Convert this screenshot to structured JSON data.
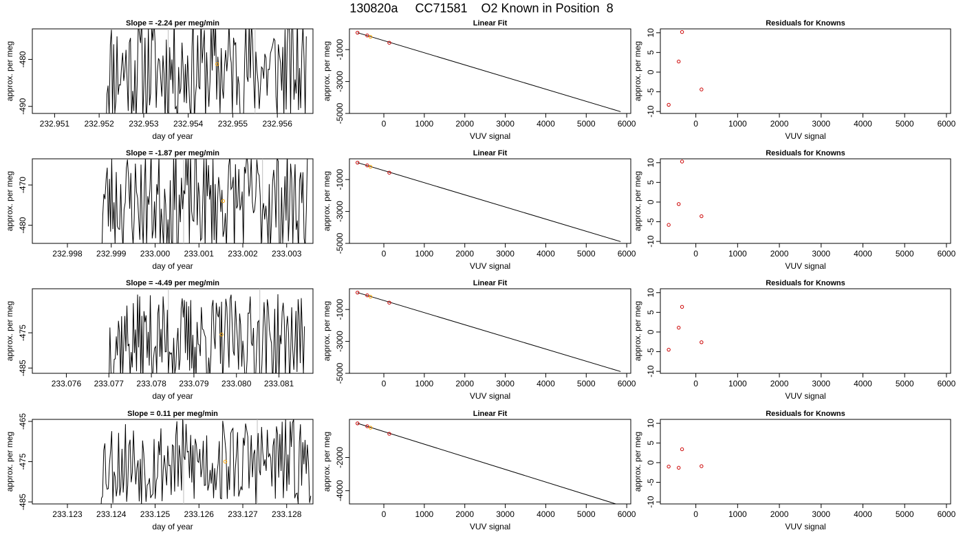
{
  "figure_title": "130820a     CC71581    O2 Known in Position  8",
  "colors": {
    "line": "#000000",
    "orange_point": "#FFA500",
    "red_point": "#CC0000",
    "vertical_marker": "#BEBEBE"
  },
  "chart_data": [
    {
      "row": 0,
      "kind": "time",
      "type": "line",
      "title": "Slope =  -2.24  per meg/min",
      "xlabel": "day of year",
      "ylabel": "approx. per meg",
      "xlim": [
        232.9505,
        232.9568
      ],
      "ylim": [
        -491.5,
        -473.5
      ],
      "xticks": [
        "232.951",
        "232.952",
        "232.953",
        "232.954",
        "232.955",
        "232.956"
      ],
      "yticks": [
        "-480",
        "-490"
      ],
      "highlight": {
        "x": 232.95465,
        "y": -481
      },
      "vlines": [
        232.95355,
        232.9555
      ],
      "series": {
        "x_start": 232.95215,
        "x_end": 232.95665,
        "n": 180,
        "center": -482,
        "amp": 12,
        "seed": 11
      }
    },
    {
      "row": 0,
      "kind": "fit",
      "type": "line",
      "title": "Linear Fit",
      "xlabel": "VUV signal",
      "ylabel": "approx. per meg",
      "xlim": [
        -850,
        6100
      ],
      "ylim": [
        -5000,
        300
      ],
      "xticks": [
        "0",
        "1000",
        "2000",
        "3000",
        "4000",
        "5000",
        "6000"
      ],
      "yticks": [
        "-1000",
        "-3000",
        "-5000"
      ],
      "line": [
        [
          -650,
          60
        ],
        [
          5850,
          -4890
        ]
      ],
      "points": [
        {
          "x": -650,
          "y": 60,
          "c": "red"
        },
        {
          "x": -410,
          "y": -115,
          "c": "red"
        },
        {
          "x": -330,
          "y": -200,
          "c": "orange"
        },
        {
          "x": 135,
          "y": -570,
          "c": "red"
        }
      ]
    },
    {
      "row": 0,
      "kind": "resid",
      "type": "scatter",
      "title": "Residuals for Knowns",
      "xlabel": "VUV signal",
      "ylabel": "approx. per meg",
      "xlim": [
        -850,
        6100
      ],
      "ylim": [
        -10.5,
        11
      ],
      "xticks": [
        "0",
        "1000",
        "2000",
        "3000",
        "4000",
        "5000",
        "6000"
      ],
      "yticks": [
        "-10",
        "-5",
        "0",
        "5",
        "10"
      ],
      "points": [
        {
          "x": -650,
          "y": -8.3
        },
        {
          "x": -410,
          "y": 2.7
        },
        {
          "x": -330,
          "y": 10.2
        },
        {
          "x": 135,
          "y": -4.4
        }
      ]
    },
    {
      "row": 1,
      "kind": "time",
      "type": "line",
      "title": "Slope =  -1.87  per meg/min",
      "xlabel": "day of year",
      "ylabel": "approx. per meg",
      "xlim": [
        232.9972,
        233.0036
      ],
      "ylim": [
        -484.5,
        -463.5
      ],
      "xticks": [
        "232.998",
        "232.999",
        "233.000",
        "233.001",
        "233.002",
        "233.003"
      ],
      "yticks": [
        "-470",
        "-480"
      ],
      "highlight": {
        "x": 233.00155,
        "y": -474
      },
      "vlines": [
        233.00065,
        233.00245
      ],
      "series": {
        "x_start": 232.99878,
        "x_end": 233.0035,
        "n": 185,
        "center": -474,
        "amp": 13,
        "seed": 23
      }
    },
    {
      "row": 1,
      "kind": "fit",
      "type": "line",
      "title": "Linear Fit",
      "xlabel": "VUV signal",
      "ylabel": "approx. per meg",
      "xlim": [
        -850,
        6100
      ],
      "ylim": [
        -5000,
        300
      ],
      "xticks": [
        "0",
        "1000",
        "2000",
        "3000",
        "4000",
        "5000",
        "6000"
      ],
      "yticks": [
        "-1000",
        "-3000",
        "-5000"
      ],
      "line": [
        [
          -650,
          60
        ],
        [
          5850,
          -4890
        ]
      ],
      "points": [
        {
          "x": -650,
          "y": 60,
          "c": "red"
        },
        {
          "x": -410,
          "y": -115,
          "c": "red"
        },
        {
          "x": -330,
          "y": -200,
          "c": "orange"
        },
        {
          "x": 135,
          "y": -570,
          "c": "red"
        }
      ]
    },
    {
      "row": 1,
      "kind": "resid",
      "type": "scatter",
      "title": "Residuals for Knowns",
      "xlabel": "VUV signal",
      "ylabel": "approx. per meg",
      "xlim": [
        -850,
        6100
      ],
      "ylim": [
        -10.5,
        11
      ],
      "xticks": [
        "0",
        "1000",
        "2000",
        "3000",
        "4000",
        "5000",
        "6000"
      ],
      "yticks": [
        "-10",
        "-5",
        "0",
        "5",
        "10"
      ],
      "points": [
        {
          "x": -650,
          "y": -5.8
        },
        {
          "x": -410,
          "y": -0.5
        },
        {
          "x": -330,
          "y": 10.3
        },
        {
          "x": 135,
          "y": -3.6
        }
      ]
    },
    {
      "row": 2,
      "kind": "time",
      "type": "line",
      "title": "Slope =  -4.49  per meg/min",
      "xlabel": "day of year",
      "ylabel": "approx. per meg",
      "xlim": [
        233.0752,
        233.0818
      ],
      "ylim": [
        -486.5,
        -462.5
      ],
      "xticks": [
        "233.076",
        "233.077",
        "233.078",
        "233.079",
        "233.080",
        "233.081"
      ],
      "yticks": [
        "-475",
        "-485"
      ],
      "highlight": {
        "x": 233.07965,
        "y": -475.5
      },
      "vlines": [
        233.0784,
        233.08055
      ],
      "series": {
        "x_start": 233.077,
        "x_end": 233.0816,
        "n": 185,
        "center": -477,
        "amp": 13,
        "seed": 37
      }
    },
    {
      "row": 2,
      "kind": "fit",
      "type": "line",
      "title": "Linear Fit",
      "xlabel": "VUV signal",
      "ylabel": "approx. per meg",
      "xlim": [
        -850,
        6100
      ],
      "ylim": [
        -5000,
        300
      ],
      "xticks": [
        "0",
        "1000",
        "2000",
        "3000",
        "4000",
        "5000",
        "6000"
      ],
      "yticks": [
        "-1000",
        "-3000",
        "-5000"
      ],
      "line": [
        [
          -650,
          60
        ],
        [
          5850,
          -4890
        ]
      ],
      "points": [
        {
          "x": -650,
          "y": 60,
          "c": "red"
        },
        {
          "x": -410,
          "y": -115,
          "c": "red"
        },
        {
          "x": -330,
          "y": -200,
          "c": "orange"
        },
        {
          "x": 135,
          "y": -570,
          "c": "red"
        }
      ]
    },
    {
      "row": 2,
      "kind": "resid",
      "type": "scatter",
      "title": "Residuals for Knowns",
      "xlabel": "VUV signal",
      "ylabel": "approx. per meg",
      "xlim": [
        -850,
        6100
      ],
      "ylim": [
        -10.5,
        11
      ],
      "xticks": [
        "0",
        "1000",
        "2000",
        "3000",
        "4000",
        "5000",
        "6000"
      ],
      "yticks": [
        "-10",
        "-5",
        "0",
        "5",
        "10"
      ],
      "points": [
        {
          "x": -650,
          "y": -4.5
        },
        {
          "x": -410,
          "y": 1.1
        },
        {
          "x": -330,
          "y": 6.4
        },
        {
          "x": 135,
          "y": -2.6
        }
      ]
    },
    {
      "row": 3,
      "kind": "time",
      "type": "line",
      "title": "Slope =  0.11  per meg/min",
      "xlabel": "day of year",
      "ylabel": "approx. per meg",
      "xlim": [
        233.1222,
        233.1286
      ],
      "ylim": [
        -485.5,
        -464.5
      ],
      "xticks": [
        "233.123",
        "233.124",
        "233.125",
        "233.126",
        "233.127",
        "233.128"
      ],
      "yticks": [
        "-465",
        "-475",
        "-485"
      ],
      "highlight": {
        "x": 233.1266,
        "y": -475
      },
      "vlines": [
        233.12565,
        233.12733
      ],
      "series": {
        "x_start": 233.12375,
        "x_end": 233.12855,
        "n": 185,
        "center": -475,
        "amp": 11,
        "seed": 53
      }
    },
    {
      "row": 3,
      "kind": "fit",
      "type": "line",
      "title": "Linear Fit",
      "xlabel": "VUV signal",
      "ylabel": "approx. per meg",
      "xlim": [
        -850,
        6100
      ],
      "ylim": [
        -4800,
        300
      ],
      "xticks": [
        "0",
        "1000",
        "2000",
        "3000",
        "4000",
        "5000",
        "6000"
      ],
      "yticks": [
        "-2000",
        "-4000"
      ],
      "line": [
        [
          -650,
          60
        ],
        [
          5850,
          -4890
        ]
      ],
      "points": [
        {
          "x": -650,
          "y": 60,
          "c": "red"
        },
        {
          "x": -410,
          "y": -115,
          "c": "red"
        },
        {
          "x": -330,
          "y": -200,
          "c": "orange"
        },
        {
          "x": 135,
          "y": -570,
          "c": "red"
        }
      ]
    },
    {
      "row": 3,
      "kind": "resid",
      "type": "scatter",
      "title": "Residuals for Knowns",
      "xlabel": "VUV signal",
      "ylabel": "approx. per meg",
      "xlim": [
        -850,
        6100
      ],
      "ylim": [
        -10.5,
        11
      ],
      "xticks": [
        "0",
        "1000",
        "2000",
        "3000",
        "4000",
        "5000",
        "6000"
      ],
      "yticks": [
        "-10",
        "-5",
        "0",
        "5",
        "10"
      ],
      "points": [
        {
          "x": -650,
          "y": -1.0
        },
        {
          "x": -410,
          "y": -1.3
        },
        {
          "x": -330,
          "y": 3.4
        },
        {
          "x": 135,
          "y": -0.9
        }
      ]
    }
  ]
}
